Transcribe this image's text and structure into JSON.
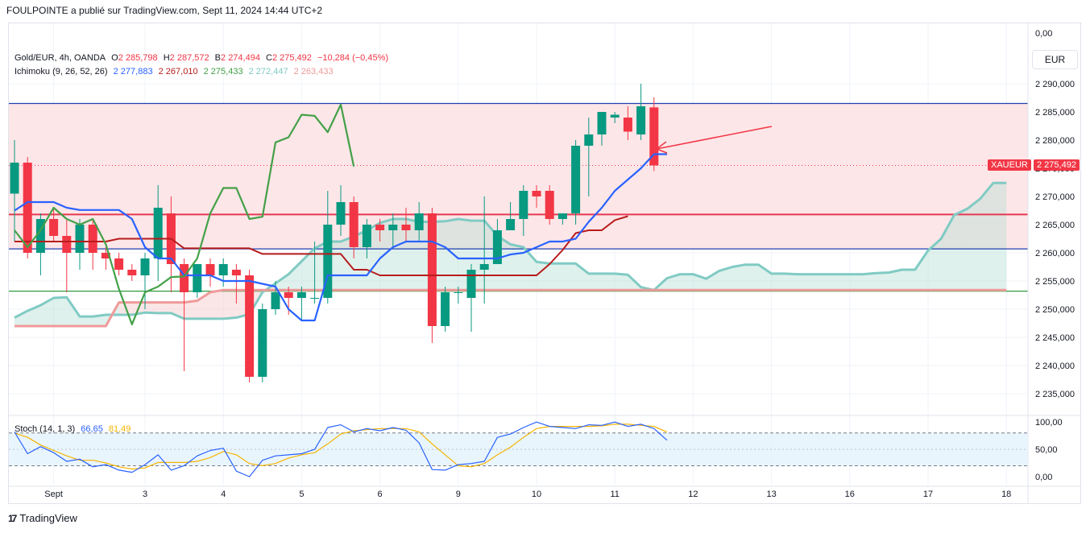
{
  "header": {
    "text": "FOULPOINTE a publié sur TradingView.com, Sept 11, 2024 14:44 UTC+2"
  },
  "currency_button": {
    "label": "EUR"
  },
  "legend_main": {
    "symbol": "Gold/EUR, 4h, OANDA",
    "o_label": "O",
    "o_value": "2 285,798",
    "h_label": "H",
    "h_value": "2 287,572",
    "b_label": "B",
    "b_value": "2 274,494",
    "c_label": "C",
    "c_value": "2 275,492",
    "change": "−10,284 (−0,45%)"
  },
  "legend_ichimoku": {
    "name": "Ichimoku (9, 26, 52, 26)",
    "v1": "2 277,883",
    "v2": "2 267,010",
    "v3": "2 275,433",
    "v4": "2 272,447",
    "v5": "2 263,433"
  },
  "legend_stoch": {
    "name": "Stoch (14, 1, 3)",
    "k": "66,65",
    "d": "81,49"
  },
  "price_tag": {
    "symbol": "XAUEUR",
    "value": "2 275,492"
  },
  "footer": {
    "logo": "17",
    "brand": "TradingView"
  },
  "colors": {
    "up": "#089981",
    "down": "#f23645",
    "tenkan": "#2962ff",
    "kijun": "#b71c1c",
    "chikou": "#43a047",
    "span_a": "#80cbc4",
    "span_b": "#ef9a9a",
    "level_blue": "#1e40af",
    "level_red": "#e53950",
    "level_green": "#2e9c3c",
    "arrow": "#f23645",
    "stoch_k": "#2962ff",
    "stoch_d": "#f5b400"
  },
  "chart_data": {
    "type": "candlestick",
    "price_axis": {
      "ticks": [
        "0,00",
        "2 290,000",
        "2 285,000",
        "2 280,000",
        "2 275,000",
        "2 270,000",
        "2 265,000",
        "2 260,000",
        "2 255,000",
        "2 250,000",
        "2 245,000",
        "2 240,000",
        "2 235,000"
      ]
    },
    "time_axis": {
      "labels": [
        {
          "label": "Sept",
          "bar": 3
        },
        {
          "label": "3",
          "bar": 10
        },
        {
          "label": "4",
          "bar": 16
        },
        {
          "label": "5",
          "bar": 22
        },
        {
          "label": "6",
          "bar": 28
        },
        {
          "label": "9",
          "bar": 34
        },
        {
          "label": "10",
          "bar": 40
        },
        {
          "label": "11",
          "bar": 46
        },
        {
          "label": "12",
          "bar": 52
        },
        {
          "label": "13",
          "bar": 58
        },
        {
          "label": "16",
          "bar": 64
        },
        {
          "label": "17",
          "bar": 70
        },
        {
          "label": "18",
          "bar": 76
        }
      ]
    },
    "candles": [
      [
        2270.5,
        2280,
        2262,
        2276
      ],
      [
        2276,
        2277,
        2259,
        2260
      ],
      [
        2260,
        2267,
        2256,
        2266
      ],
      [
        2266,
        2268,
        2262,
        2263
      ],
      [
        2263,
        2266,
        2253,
        2260
      ],
      [
        2260,
        2266,
        2257,
        2265
      ],
      [
        2265,
        2266,
        2257,
        2260
      ],
      [
        2260,
        2261,
        2257,
        2259
      ],
      [
        2259,
        2260,
        2256,
        2257
      ],
      [
        2257,
        2258,
        2255,
        2256
      ],
      [
        2256,
        2260,
        2250,
        2259
      ],
      [
        2259,
        2272,
        2255,
        2268
      ],
      [
        2267,
        2270,
        2253,
        2258
      ],
      [
        2258,
        2259,
        2239,
        2253
      ],
      [
        2253,
        2258,
        2252,
        2258
      ],
      [
        2258,
        2259,
        2254,
        2256
      ],
      [
        2256,
        2259,
        2254,
        2258
      ],
      [
        2257,
        2258,
        2251,
        2256
      ],
      [
        2256,
        2257,
        2237,
        2238
      ],
      [
        2238,
        2251,
        2237,
        2250
      ],
      [
        2250,
        2255,
        2249,
        2253
      ],
      [
        2253,
        2254,
        2249,
        2252
      ],
      [
        2252,
        2254,
        2248,
        2253
      ],
      [
        2252,
        2262,
        2251,
        2252
      ],
      [
        2252,
        2271,
        2251,
        2265
      ],
      [
        2265,
        2272,
        2263,
        2269
      ],
      [
        2269,
        2270,
        2259,
        2261
      ],
      [
        2261,
        2266,
        2259,
        2265
      ],
      [
        2265,
        2266,
        2262,
        2264
      ],
      [
        2264,
        2267,
        2261,
        2265
      ],
      [
        2265,
        2268,
        2262,
        2264
      ],
      [
        2264,
        2269,
        2262,
        2267
      ],
      [
        2267,
        2268,
        2244,
        2247
      ],
      [
        2247,
        2254,
        2246,
        2253
      ],
      [
        2253,
        2254,
        2251,
        2253
      ],
      [
        2252,
        2258,
        2246,
        2257
      ],
      [
        2257,
        2270,
        2251,
        2258
      ],
      [
        2258,
        2266,
        2258,
        2264
      ],
      [
        2264,
        2269,
        2264,
        2266
      ],
      [
        2266,
        2272,
        2263,
        2271
      ],
      [
        2271,
        2272,
        2268,
        2270
      ],
      [
        2271,
        2272,
        2265,
        2266
      ],
      [
        2266,
        2267,
        2265,
        2267
      ],
      [
        2267,
        2280,
        2265,
        2279
      ],
      [
        2279,
        2284,
        2270,
        2281
      ],
      [
        2281,
        2285,
        2279,
        2285
      ],
      [
        2284,
        2285,
        2283,
        2284.5
      ],
      [
        2284,
        2286,
        2280,
        2281.5
      ],
      [
        2281,
        2290,
        2280,
        2286
      ],
      [
        2285.8,
        2287.6,
        2274.5,
        2275.5
      ]
    ],
    "tenkan": [
      2267.5,
      2269,
      2269,
      2269,
      2268,
      2267.6,
      2267.6,
      2267.6,
      2267.6,
      2266,
      2261,
      2259,
      2259,
      2256,
      2256,
      2256,
      2255,
      2255,
      2255,
      2254.5,
      2254,
      2250,
      2248,
      2248,
      2256,
      2256,
      2256,
      2256,
      2259,
      2261,
      2262,
      2262,
      2262,
      2261,
      2259,
      2259,
      2259,
      2259,
      2259.7,
      2260,
      2261,
      2262,
      2262,
      2262.5,
      2265.5,
      2268,
      2271,
      2273,
      2275,
      2277.5,
      2277.5
    ],
    "kijun": [
      2262,
      2262,
      2262,
      2262,
      2262,
      2262,
      2262,
      2262,
      2262.5,
      2262.5,
      2262.5,
      2262.5,
      2262.5,
      2260.8,
      2260.8,
      2260.8,
      2260.8,
      2260.8,
      2260.8,
      2259.8,
      2259.8,
      2259.8,
      2259.8,
      2259.8,
      2259.8,
      2259.8,
      2257,
      2257,
      2256,
      2256,
      2256,
      2256,
      2256,
      2256,
      2256,
      2256,
      2256,
      2256,
      2256,
      2256,
      2256,
      2258,
      2260.5,
      2263.5,
      2264,
      2264,
      2265.8,
      2266.5
    ],
    "chikou": [
      2264,
      2261,
      2264,
      2268,
      2266,
      2265,
      2266,
      2261.5,
      2253.6,
      2247.3,
      2253,
      2254,
      2255.7,
      2255.8,
      2259,
      2267,
      2271.5,
      2271.5,
      2266,
      2266.4,
      2279.6,
      2280.5,
      2284.5,
      2284.3,
      2281.4,
      2286.3,
      2275.3
    ],
    "span_a": [
      2248.5,
      2249.7,
      2250.7,
      2252,
      2252.1,
      2248.7,
      2248.7,
      2249,
      2249,
      2249,
      2249.4,
      2249.3,
      2249.3,
      2248.3,
      2248.3,
      2248.3,
      2248.3,
      2248.5,
      2249.1,
      2253,
      2254.6,
      2256.2,
      2258.5,
      2260.8,
      2262,
      2262,
      2262.9,
      2264,
      2265.3,
      2266,
      2266,
      2265.5,
      2265.5,
      2265.6,
      2266,
      2265.7,
      2265.7,
      2263,
      2261.5,
      2261,
      2258.4,
      2258.1,
      2258.1,
      2258.1,
      2256.3,
      2256.3,
      2256.3,
      2256.1,
      2253.9,
      2253.4,
      2255.5,
      2256.2,
      2256.2,
      2255.4,
      2256.8,
      2257.5,
      2257.9,
      2257.9,
      2256.3,
      2256.3,
      2256.2,
      2256.2,
      2256.2,
      2256.2,
      2256.2,
      2256.2,
      2256.4,
      2256.5,
      2257,
      2257,
      2260.4,
      2262.5,
      2266.7,
      2267.8,
      2269.6,
      2272.4,
      2272.4
    ],
    "span_b": [
      2247,
      2247,
      2247,
      2247,
      2247,
      2247,
      2247,
      2247,
      2251.2,
      2251.2,
      2251.2,
      2251.2,
      2251.2,
      2251.2,
      2251.5,
      2253,
      2253.4,
      2253.4,
      2253.4,
      2253.4,
      2253.4,
      2253.4,
      2253.4,
      2253.4,
      2253.4,
      2253.4,
      2253.4,
      2253.4,
      2253.4,
      2253.4,
      2253.4,
      2253.4,
      2253.4,
      2253.4,
      2253.4,
      2253.4,
      2253.4,
      2253.4,
      2253.4,
      2253.4,
      2253.4,
      2253.4,
      2253.4,
      2253.4,
      2253.4,
      2253.4,
      2253.4,
      2253.4,
      2253.4,
      2253.4,
      2253.4,
      2253.4,
      2253.4,
      2253.4,
      2253.4,
      2253.4,
      2253.4,
      2253.4,
      2253.4,
      2253.4,
      2253.4,
      2253.4,
      2253.4,
      2253.4,
      2253.4,
      2253.4,
      2253.4,
      2253.4,
      2253.4,
      2253.4,
      2253.4,
      2253.4,
      2253.4,
      2253.4,
      2253.4,
      2253.4,
      2253.4
    ],
    "levels": [
      2286.5,
      2266.8,
      2260.7,
      2253.2
    ],
    "stoch": {
      "axis_ticks": [
        "100,00",
        "50,00",
        "0,00"
      ],
      "bands": [
        80,
        20
      ],
      "k": [
        82,
        42,
        55,
        44,
        28,
        32,
        18,
        22,
        12,
        8,
        22,
        40,
        12,
        20,
        38,
        48,
        52,
        10,
        0,
        30,
        38,
        40,
        42,
        50,
        90,
        95,
        82,
        88,
        84,
        90,
        85,
        62,
        13,
        12,
        22,
        24,
        28,
        72,
        78,
        90,
        100,
        92,
        90,
        88,
        95,
        94,
        100,
        92,
        96,
        88,
        66.65
      ],
      "d": [
        80,
        72,
        58,
        48,
        38,
        30,
        30,
        25,
        18,
        14,
        16,
        26,
        26,
        26,
        28,
        35,
        46,
        40,
        24,
        20,
        24,
        34,
        40,
        44,
        60,
        78,
        84,
        86,
        88,
        88,
        88,
        82,
        60,
        40,
        20,
        18,
        24,
        40,
        54,
        72,
        88,
        92,
        92,
        92,
        92,
        93,
        96,
        96,
        94,
        92,
        81.49
      ]
    }
  }
}
